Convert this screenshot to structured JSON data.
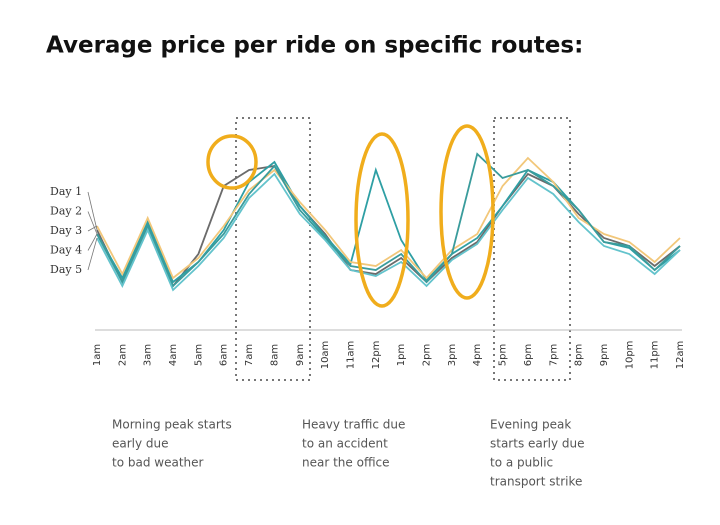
{
  "chart_data": {
    "type": "line",
    "title": "Average price per ride on specific routes:",
    "categories": [
      "1am",
      "2am",
      "3am",
      "4am",
      "5am",
      "6am",
      "7am",
      "8am",
      "9am",
      "10am",
      "11am",
      "12pm",
      "1pm",
      "2pm",
      "3pm",
      "4pm",
      "5pm",
      "6pm",
      "7pm",
      "8pm",
      "9pm",
      "10pm",
      "11pm",
      "12am"
    ],
    "ylim": [
      0,
      100
    ],
    "series": [
      {
        "name": "Day 1",
        "color": "#6b6b6b",
        "values": [
          50,
          24,
          52,
          22,
          38,
          72,
          80,
          82,
          62,
          48,
          30,
          28,
          36,
          24,
          36,
          44,
          62,
          78,
          72,
          58,
          46,
          42,
          32,
          42
        ]
      },
      {
        "name": "Day 2",
        "color": "#2e9fa4",
        "values": [
          48,
          26,
          54,
          24,
          34,
          50,
          74,
          84,
          62,
          47,
          33,
          80,
          45,
          25,
          38,
          46,
          62,
          80,
          74,
          60,
          44,
          41,
          30,
          40
        ]
      },
      {
        "name": "Day 3",
        "color": "#f2c77a",
        "values": [
          52,
          28,
          56,
          26,
          36,
          52,
          70,
          80,
          64,
          50,
          34,
          32,
          40,
          26,
          40,
          48,
          72,
          86,
          74,
          56,
          48,
          44,
          34,
          46
        ]
      },
      {
        "name": "Day 4",
        "color": "#3a9c9c",
        "values": [
          48,
          24,
          52,
          22,
          34,
          48,
          68,
          82,
          60,
          46,
          32,
          30,
          38,
          24,
          38,
          88,
          76,
          80,
          72,
          60,
          44,
          42,
          30,
          42
        ]
      },
      {
        "name": "Day 5",
        "color": "#63c3cc",
        "values": [
          46,
          22,
          50,
          20,
          32,
          46,
          66,
          78,
          58,
          45,
          30,
          27,
          34,
          22,
          35,
          43,
          60,
          76,
          68,
          54,
          42,
          38,
          28,
          40
        ]
      }
    ],
    "annotations": [
      [
        "Morning peak starts",
        "early due",
        "to bad weather"
      ],
      [
        "Heavy traffic due",
        "to an accident",
        "near the office"
      ],
      [
        "Evening peak",
        "starts early due",
        "to a public",
        "transport strike"
      ]
    ]
  }
}
